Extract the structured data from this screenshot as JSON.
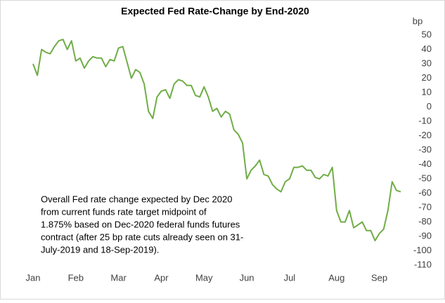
{
  "chart_data": {
    "type": "line",
    "title": "Expected Fed Rate-Change by End-2020",
    "y_label": "bp",
    "annotation": [
      "Overall Fed rate change expected by Dec 2020",
      "from current funds rate target midpoint of",
      "1.875% based on Dec-2020 federal funds futures",
      "contract (after 25 bp rate cuts already seen on 31-",
      "July-2019 and 18-Sep-2019)."
    ],
    "categories": [
      "Jan",
      null,
      null,
      null,
      null,
      null,
      null,
      null,
      null,
      null,
      "Feb",
      null,
      null,
      null,
      null,
      null,
      null,
      null,
      null,
      null,
      "Mar",
      null,
      null,
      null,
      null,
      null,
      null,
      null,
      null,
      null,
      "Apr",
      null,
      null,
      null,
      null,
      null,
      null,
      null,
      null,
      null,
      "May",
      null,
      null,
      null,
      null,
      null,
      null,
      null,
      null,
      null,
      "Jun",
      null,
      null,
      null,
      null,
      null,
      null,
      null,
      null,
      null,
      "Jul",
      null,
      null,
      null,
      null,
      null,
      null,
      null,
      null,
      null,
      null,
      "Aug",
      null,
      null,
      null,
      null,
      null,
      null,
      null,
      null,
      null,
      "Sep",
      null,
      null,
      null,
      null,
      null
    ],
    "values": [
      30,
      22,
      40,
      38,
      37,
      42,
      46,
      47,
      40,
      46,
      32,
      34,
      27,
      32,
      35,
      34,
      34,
      28,
      33,
      32,
      41,
      42,
      31,
      20,
      26,
      24,
      16,
      -3,
      -8,
      7,
      11,
      12,
      6,
      16,
      19,
      18,
      15,
      15,
      8,
      7,
      14,
      7,
      -3,
      -1,
      -7,
      -3,
      -5,
      -16,
      -19,
      -25,
      -50,
      -44,
      -41,
      -37,
      -47,
      -48,
      -54,
      -57,
      -59,
      -52,
      -50,
      -42,
      -42,
      -41,
      -44,
      -44,
      -49,
      -50,
      -47,
      -48,
      -42,
      -72,
      -80,
      -80,
      -72,
      -84,
      -82,
      -80,
      -86,
      -86,
      -93,
      -88,
      -85,
      -72,
      -52,
      -58,
      -59
    ],
    "color": "#70ad47",
    "ylim": [
      -110,
      50
    ],
    "yticks": [
      50,
      40,
      30,
      20,
      10,
      0,
      -10,
      -20,
      -30,
      -40,
      -50,
      -60,
      -70,
      -80,
      -90,
      -100,
      -110
    ],
    "grid": false
  }
}
